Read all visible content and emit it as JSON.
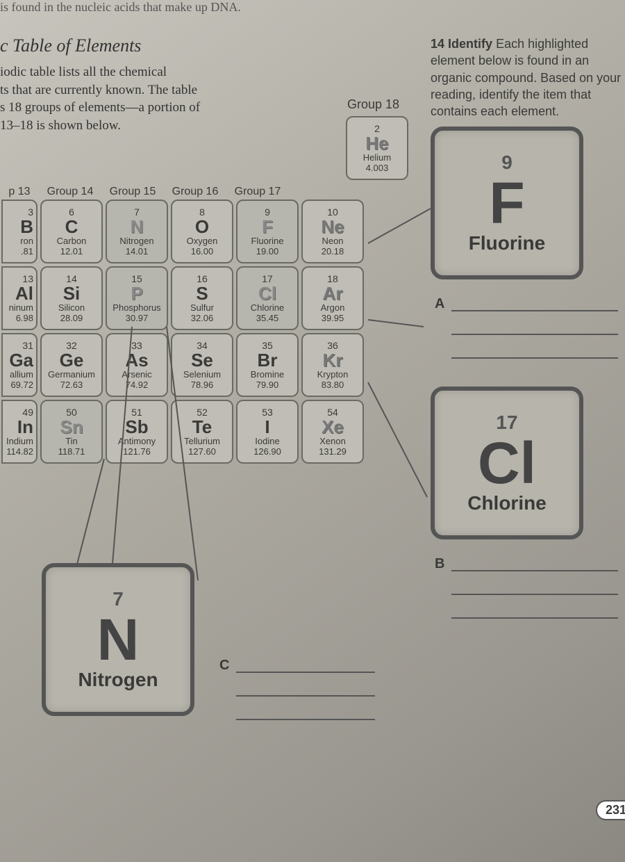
{
  "top_fragment": "is found in the nucleic acids that make up DNA.",
  "title": "c Table of Elements",
  "description": "iodic table lists all the chemical\nts that are currently known. The table\ns 18 groups of elements—a portion of\n13–18 is shown below.",
  "group_labels": [
    "p 13",
    "Group 14",
    "Group 15",
    "Group 16",
    "Group 17"
  ],
  "group18_label": "Group 18",
  "question": {
    "num": "14",
    "word": "Identify",
    "text": "Each highlighted element below is found in an organic compound. Based on your reading, identify the item that contains each element."
  },
  "edge_col": [
    {
      "num": "3",
      "sym": "B",
      "nm": "ron",
      "wt": ".81"
    },
    {
      "num": "13",
      "sym": "Al",
      "nm": "ninum",
      "wt": "6.98"
    },
    {
      "num": "31",
      "sym": "Ga",
      "nm": "allium",
      "wt": "69.72"
    },
    {
      "num": "49",
      "sym": "In",
      "nm": "Indium",
      "wt": "114.82"
    }
  ],
  "rows": [
    [
      {
        "num": "6",
        "sym": "C",
        "nm": "Carbon",
        "wt": "12.01"
      },
      {
        "num": "7",
        "sym": "N",
        "nm": "Nitrogen",
        "wt": "14.01",
        "hl": true
      },
      {
        "num": "8",
        "sym": "O",
        "nm": "Oxygen",
        "wt": "16.00"
      },
      {
        "num": "9",
        "sym": "F",
        "nm": "Fluorine",
        "wt": "19.00",
        "hl": true
      },
      {
        "num": "10",
        "sym": "Ne",
        "nm": "Neon",
        "wt": "20.18",
        "noble": true
      }
    ],
    [
      {
        "num": "14",
        "sym": "Si",
        "nm": "Silicon",
        "wt": "28.09"
      },
      {
        "num": "15",
        "sym": "P",
        "nm": "Phosphorus",
        "wt": "30.97",
        "hl": true
      },
      {
        "num": "16",
        "sym": "S",
        "nm": "Sulfur",
        "wt": "32.06"
      },
      {
        "num": "17",
        "sym": "Cl",
        "nm": "Chlorine",
        "wt": "35.45",
        "hl": true
      },
      {
        "num": "18",
        "sym": "Ar",
        "nm": "Argon",
        "wt": "39.95",
        "noble": true
      }
    ],
    [
      {
        "num": "32",
        "sym": "Ge",
        "nm": "Germanium",
        "wt": "72.63"
      },
      {
        "num": "33",
        "sym": "As",
        "nm": "Arsenic",
        "wt": "74.92"
      },
      {
        "num": "34",
        "sym": "Se",
        "nm": "Selenium",
        "wt": "78.96"
      },
      {
        "num": "35",
        "sym": "Br",
        "nm": "Bromine",
        "wt": "79.90"
      },
      {
        "num": "36",
        "sym": "Kr",
        "nm": "Krypton",
        "wt": "83.80",
        "noble": true
      }
    ],
    [
      {
        "num": "50",
        "sym": "Sn",
        "nm": "Tin",
        "wt": "118.71",
        "hl": true
      },
      {
        "num": "51",
        "sym": "Sb",
        "nm": "Antimony",
        "wt": "121.76"
      },
      {
        "num": "52",
        "sym": "Te",
        "nm": "Tellurium",
        "wt": "127.60"
      },
      {
        "num": "53",
        "sym": "I",
        "nm": "Iodine",
        "wt": "126.90"
      },
      {
        "num": "54",
        "sym": "Xe",
        "nm": "Xenon",
        "wt": "131.29",
        "noble": true
      }
    ]
  ],
  "he": {
    "num": "2",
    "sym": "He",
    "nm": "Helium",
    "wt": "4.003",
    "noble": true
  },
  "big_tiles": {
    "F": {
      "num": "9",
      "sym": "F",
      "name": "Fluorine"
    },
    "Cl": {
      "num": "17",
      "sym": "Cl",
      "name": "Chlorine"
    },
    "N": {
      "num": "7",
      "sym": "N",
      "name": "Nitrogen"
    }
  },
  "answer_labels": {
    "A": "A",
    "B": "B",
    "C": "C"
  },
  "page_number": "231",
  "colors": {
    "border": "#6a6a64",
    "tile_bg": "#bfbdb5",
    "big_border": "#555",
    "text": "#3a3a38"
  }
}
